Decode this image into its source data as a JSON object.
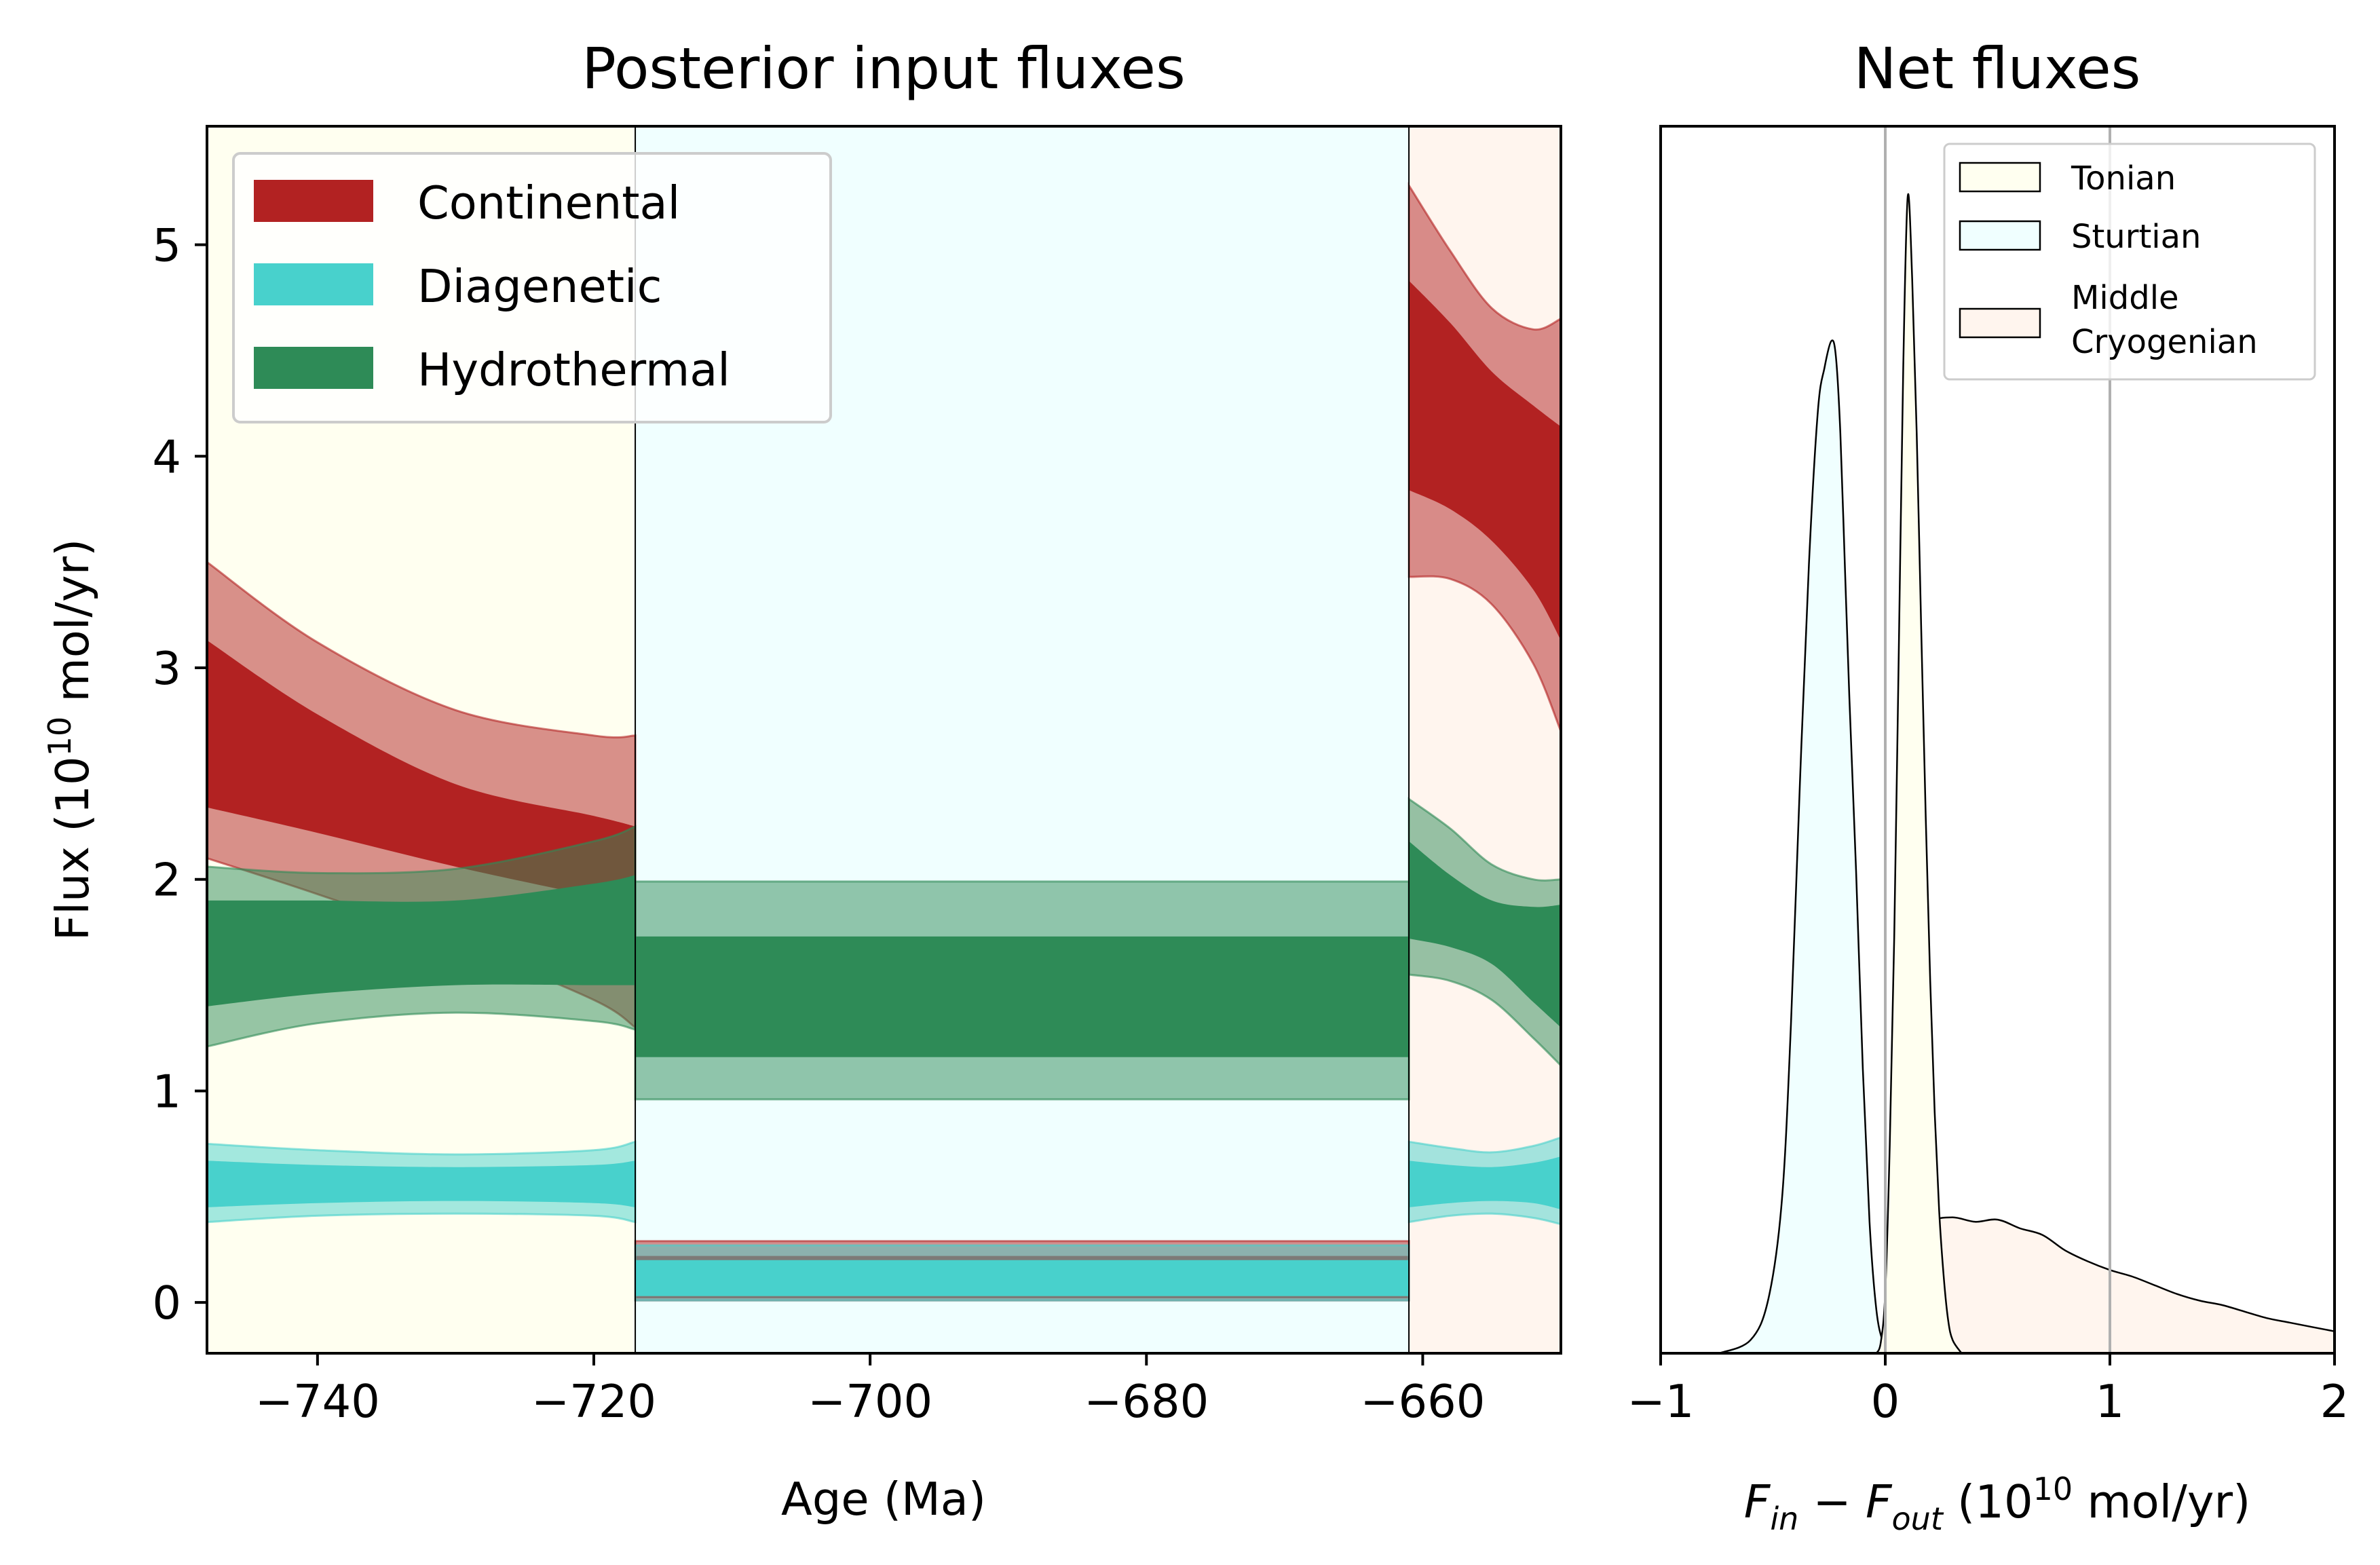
{
  "chart_data": [
    {
      "type": "area",
      "title": "Posterior input fluxes",
      "xlabel": "Age (Ma)",
      "ylabel": {
        "prefix": "Flux (10",
        "exp": "10",
        "suffix": " mol/yr)"
      },
      "xlim": [
        -748,
        -650
      ],
      "ylim": [
        -0.24,
        5.56
      ],
      "xticks": [
        -740,
        -720,
        -700,
        -680,
        -660
      ],
      "yticks": [
        0,
        1,
        2,
        3,
        4,
        5
      ],
      "xtick_labels": [
        "−740",
        "−720",
        "−700",
        "−680",
        "−660"
      ],
      "ytick_labels": [
        "0",
        "1",
        "2",
        "3",
        "4",
        "5"
      ],
      "legend": {
        "placement": "top-left"
      },
      "periods": [
        {
          "start": -748,
          "end": -717,
          "color": "#fffff0"
        },
        {
          "start": -717,
          "end": -661,
          "color": "#f0ffff"
        },
        {
          "start": -661,
          "end": -650,
          "color": "#fff5ee"
        }
      ],
      "boundaries": [
        -717,
        -661
      ],
      "series": [
        {
          "name": "Continental",
          "color": "#b22222",
          "segments": [
            {
              "x": [
                -748,
                -740,
                -730,
                -720,
                -717
              ],
              "outer_lo": [
                2.1,
                1.93,
                1.7,
                1.43,
                1.3
              ],
              "inner_lo": [
                2.34,
                2.22,
                2.06,
                1.92,
                1.89
              ],
              "inner_hi": [
                3.13,
                2.78,
                2.45,
                2.3,
                2.25
              ],
              "outer_hi": [
                3.5,
                3.12,
                2.8,
                2.68,
                2.68
              ]
            },
            {
              "x": [
                -717,
                -661
              ],
              "outer_lo": [
                0.01,
                0.01
              ],
              "inner_lo": [
                0.02,
                0.02
              ],
              "inner_hi": [
                0.22,
                0.22
              ],
              "outer_hi": [
                0.29,
                0.29
              ]
            },
            {
              "x": [
                -661,
                -658,
                -655,
                -652,
                -650
              ],
              "outer_lo": [
                3.43,
                3.42,
                3.3,
                3.02,
                2.7
              ],
              "inner_lo": [
                3.84,
                3.75,
                3.6,
                3.37,
                3.13
              ],
              "inner_hi": [
                4.83,
                4.63,
                4.4,
                4.24,
                4.14
              ],
              "outer_hi": [
                5.28,
                4.97,
                4.7,
                4.6,
                4.65
              ]
            }
          ]
        },
        {
          "name": "Diagenetic",
          "color": "#48d1cc",
          "segments": [
            {
              "x": [
                -748,
                -740,
                -730,
                -720,
                -717
              ],
              "outer_lo": [
                0.38,
                0.41,
                0.42,
                0.41,
                0.38
              ],
              "inner_lo": [
                0.45,
                0.47,
                0.48,
                0.47,
                0.45
              ],
              "inner_hi": [
                0.67,
                0.65,
                0.64,
                0.65,
                0.67
              ],
              "outer_hi": [
                0.75,
                0.72,
                0.7,
                0.72,
                0.76
              ]
            },
            {
              "x": [
                -717,
                -661
              ],
              "outer_lo": [
                0.01,
                0.01
              ],
              "inner_lo": [
                0.03,
                0.03
              ],
              "inner_hi": [
                0.2,
                0.2
              ],
              "outer_hi": [
                0.27,
                0.27
              ]
            },
            {
              "x": [
                -661,
                -658,
                -655,
                -652,
                -650
              ],
              "outer_lo": [
                0.38,
                0.41,
                0.42,
                0.4,
                0.37
              ],
              "inner_lo": [
                0.45,
                0.47,
                0.48,
                0.47,
                0.44
              ],
              "inner_hi": [
                0.67,
                0.65,
                0.64,
                0.66,
                0.69
              ],
              "outer_hi": [
                0.76,
                0.73,
                0.71,
                0.74,
                0.78
              ]
            }
          ]
        },
        {
          "name": "Hydrothermal",
          "color": "#2e8b57",
          "segments": [
            {
              "x": [
                -748,
                -740,
                -730,
                -720,
                -717
              ],
              "outer_lo": [
                1.21,
                1.32,
                1.37,
                1.33,
                1.29
              ],
              "inner_lo": [
                1.4,
                1.46,
                1.5,
                1.5,
                1.5
              ],
              "inner_hi": [
                1.9,
                1.9,
                1.9,
                1.98,
                2.02
              ],
              "outer_hi": [
                2.06,
                2.03,
                2.05,
                2.18,
                2.25
              ]
            },
            {
              "x": [
                -717,
                -661
              ],
              "outer_lo": [
                0.96,
                0.96
              ],
              "inner_lo": [
                1.16,
                1.16
              ],
              "inner_hi": [
                1.73,
                1.73
              ],
              "outer_hi": [
                1.99,
                1.99
              ]
            },
            {
              "x": [
                -661,
                -658,
                -655,
                -652,
                -650
              ],
              "outer_lo": [
                1.55,
                1.52,
                1.43,
                1.25,
                1.12
              ],
              "inner_lo": [
                1.72,
                1.68,
                1.6,
                1.42,
                1.3
              ],
              "inner_hi": [
                2.18,
                2.02,
                1.9,
                1.87,
                1.88
              ],
              "outer_hi": [
                2.38,
                2.24,
                2.07,
                2.0,
                2.0
              ]
            }
          ]
        }
      ]
    },
    {
      "type": "area",
      "title": "Net fluxes",
      "xlabel": {
        "F1": "F",
        "s1": "in",
        "mid": " − ",
        "F2": "F",
        "s2": "out",
        "pre": " (10",
        "exp": "10",
        "post": " mol/yr)"
      },
      "xlim": [
        -1,
        2
      ],
      "xticks": [
        -1,
        0,
        1,
        2
      ],
      "xtick_labels": [
        "−1",
        "0",
        "1",
        "2"
      ],
      "ylim": [
        0,
        5.6
      ],
      "vlines": [
        0,
        1
      ],
      "legend": {
        "placement": "top-right"
      },
      "series": [
        {
          "name": "Tonian",
          "color": "#fffff0",
          "x": [
            -0.04,
            -0.02,
            0.0,
            0.02,
            0.04,
            0.06,
            0.08,
            0.1,
            0.12,
            0.14,
            0.16,
            0.18,
            0.2,
            0.22,
            0.24,
            0.26,
            0.28,
            0.3,
            0.34
          ],
          "y": [
            0.0,
            0.05,
            0.28,
            0.95,
            1.9,
            3.2,
            4.5,
            5.28,
            4.9,
            4.2,
            3.3,
            2.45,
            1.7,
            1.1,
            0.65,
            0.35,
            0.15,
            0.06,
            0.0
          ]
        },
        {
          "name": "Sturtian",
          "color": "#f0ffff",
          "x": [
            -0.74,
            -0.6,
            -0.52,
            -0.46,
            -0.42,
            -0.38,
            -0.34,
            -0.3,
            -0.27,
            -0.24,
            -0.22,
            -0.2,
            -0.18,
            -0.16,
            -0.13,
            -0.1,
            -0.07,
            -0.04,
            -0.01,
            0.02
          ],
          "y": [
            0.0,
            0.06,
            0.25,
            0.7,
            1.5,
            2.6,
            3.6,
            4.3,
            4.5,
            4.62,
            4.55,
            4.2,
            3.6,
            3.0,
            2.2,
            1.3,
            0.6,
            0.2,
            0.05,
            0.0
          ]
        },
        {
          "name": "Middle\nCryogenian",
          "color": "#fff5ee",
          "x": [
            -0.05,
            0.0,
            0.05,
            0.1,
            0.2,
            0.3,
            0.4,
            0.5,
            0.6,
            0.7,
            0.8,
            0.9,
            1.0,
            1.1,
            1.2,
            1.3,
            1.4,
            1.5,
            1.6,
            1.7,
            1.8,
            1.9,
            2.0
          ],
          "y": [
            0.0,
            0.08,
            0.3,
            0.5,
            0.6,
            0.62,
            0.6,
            0.61,
            0.57,
            0.54,
            0.47,
            0.42,
            0.38,
            0.35,
            0.31,
            0.27,
            0.24,
            0.22,
            0.19,
            0.16,
            0.14,
            0.12,
            0.1
          ]
        }
      ]
    }
  ]
}
